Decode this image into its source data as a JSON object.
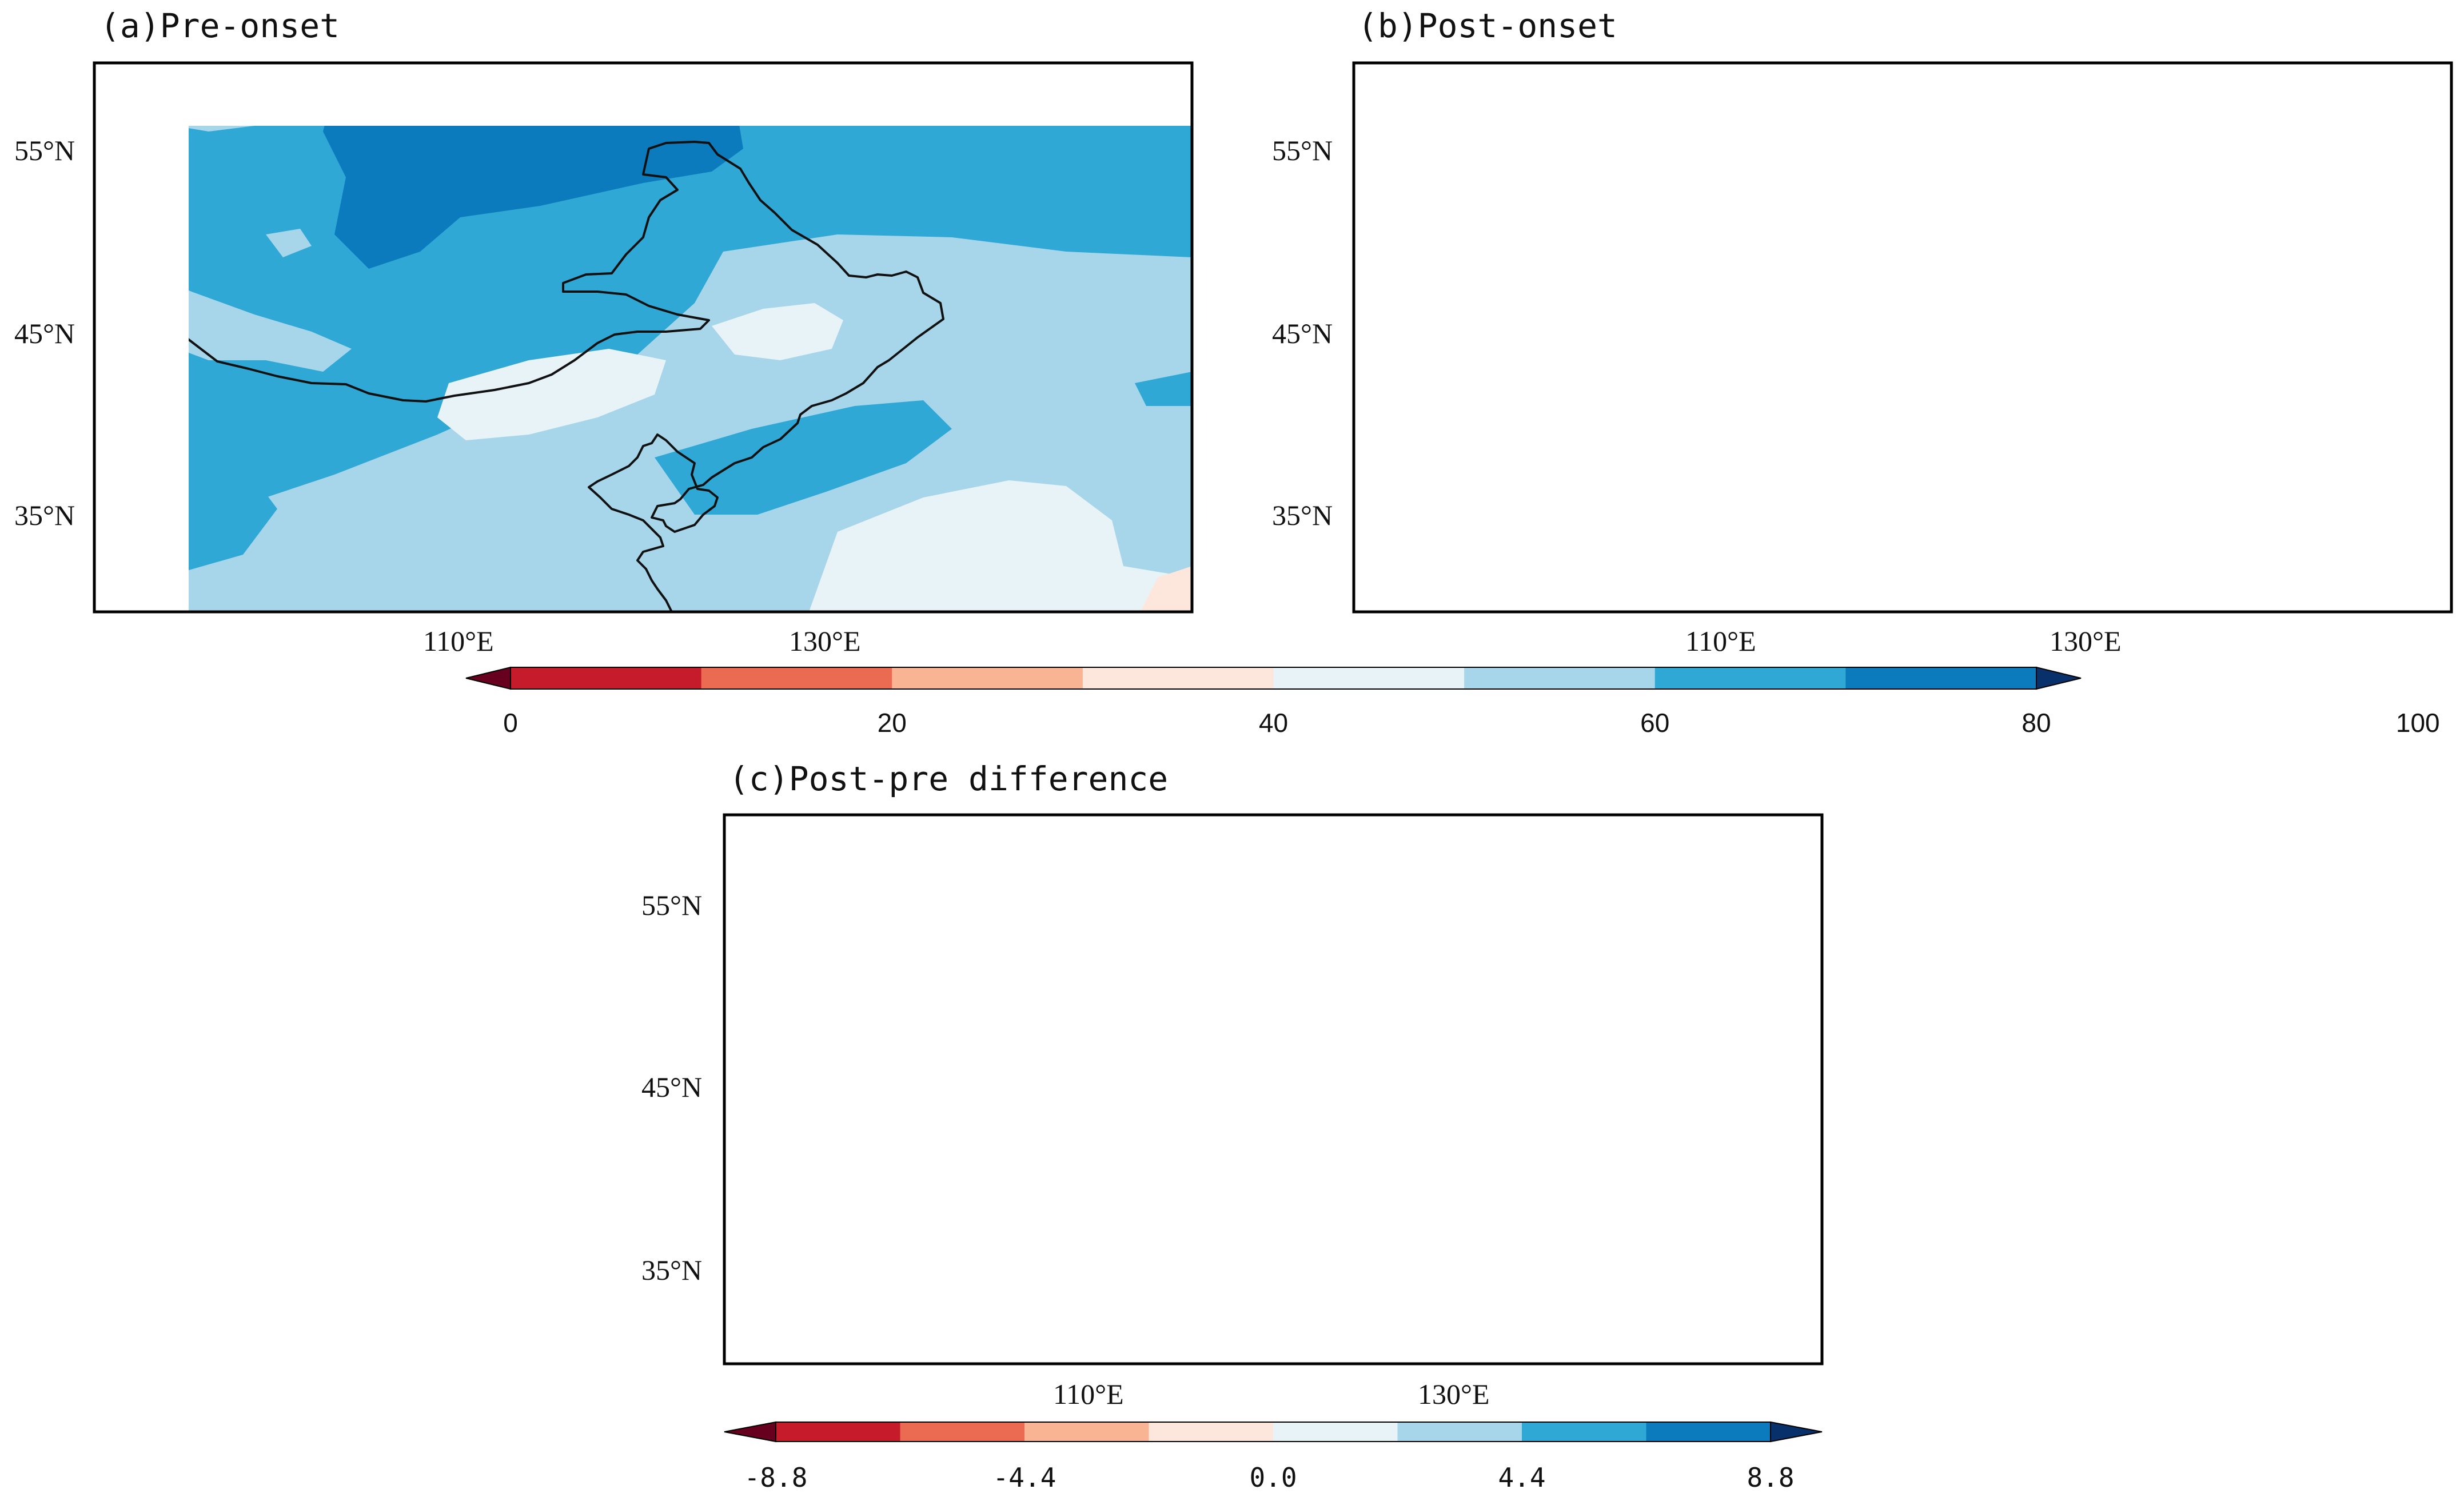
{
  "panels": [
    {
      "id": "a",
      "title": "(a)Pre-onset",
      "lat_labels": [
        "55°N",
        "45°N",
        "35°N"
      ],
      "lon_labels": [
        "110°E",
        "130°E"
      ],
      "fill_colors": [
        "#2fa8d6",
        "#0b7bbd",
        "#a7d6ea",
        "#e8f3f8",
        "#fde6db"
      ]
    },
    {
      "id": "b",
      "title": "(b)Post-onset",
      "lat_labels": [
        "55°N",
        "45°N",
        "35°N"
      ],
      "lon_labels": [
        "110°E",
        "130°E"
      ],
      "fill_colors": [
        "#2fa8d6",
        "#0b7bbd",
        "#a7d6ea",
        "#e8f3f8",
        "#fde6db"
      ]
    },
    {
      "id": "c",
      "title": "(c)Post-pre difference",
      "lat_labels": [
        "55°N",
        "45°N",
        "35°N"
      ],
      "lon_labels": [
        "110°E",
        "130°E"
      ],
      "stippling": true
    }
  ],
  "colorbars": [
    {
      "id": "cb1",
      "ticks": [
        "0",
        "20",
        "40",
        "60",
        "80",
        "100"
      ],
      "range": [
        0,
        100
      ],
      "colors": [
        "#67001f",
        "#c51b2b",
        "#ea6a52",
        "#f9b494",
        "#fde6db",
        "#e8f3f8",
        "#a7d6ea",
        "#2fa8d6",
        "#0b7bbd",
        "#08306b"
      ]
    },
    {
      "id": "cb2",
      "ticks": [
        "-8.8",
        "-4.4",
        "0.0",
        "4.4",
        "8.8"
      ],
      "range": [
        -11,
        11
      ],
      "colors": [
        "#67001f",
        "#c51b2b",
        "#ea6a52",
        "#f9b494",
        "#fde6db",
        "#e8f3f8",
        "#a7d6ea",
        "#2fa8d6",
        "#0b7bbd",
        "#08306b"
      ]
    }
  ]
}
